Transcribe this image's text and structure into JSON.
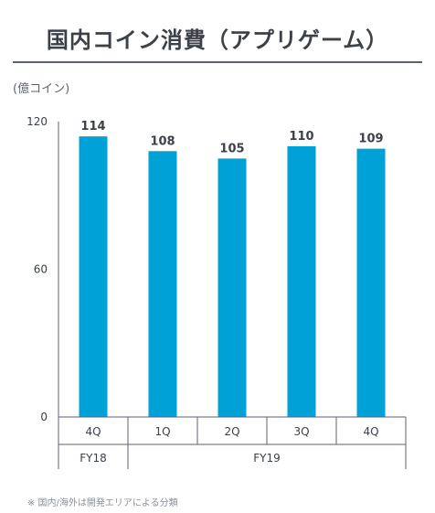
{
  "title": "国内コイン消費（アプリゲーム）",
  "unit": "(億コイン)",
  "footnote": "※ 国内/海外は開発エリアによる分類",
  "chart_data": {
    "type": "bar",
    "categories": [
      "4Q",
      "1Q",
      "2Q",
      "3Q",
      "4Q"
    ],
    "groups": [
      {
        "label": "FY18",
        "span": 1
      },
      {
        "label": "FY19",
        "span": 4
      }
    ],
    "values": [
      114,
      108,
      105,
      110,
      109
    ],
    "ylim": [
      0,
      120
    ],
    "yticks": [
      0,
      60,
      120
    ],
    "bar_color": "#00a1d6",
    "grid": false
  }
}
